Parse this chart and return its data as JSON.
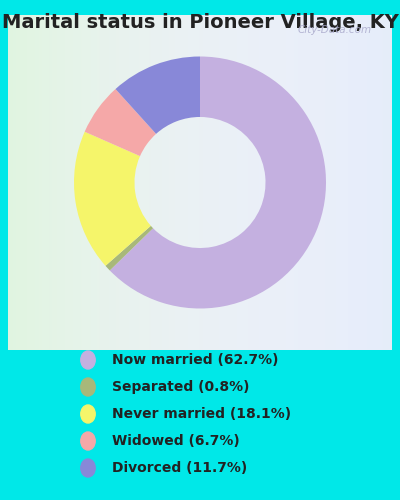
{
  "title": "Marital status in Pioneer Village, KY",
  "slices": [
    {
      "label": "Now married (62.7%)",
      "value": 62.7,
      "color": "#c4b0e0"
    },
    {
      "label": "Separated (0.8%)",
      "value": 0.8,
      "color": "#a8b87a"
    },
    {
      "label": "Never married (18.1%)",
      "value": 18.1,
      "color": "#f5f56a"
    },
    {
      "label": "Widowed (6.7%)",
      "value": 6.7,
      "color": "#f5a8a8"
    },
    {
      "label": "Divorced (11.7%)",
      "value": 11.7,
      "color": "#8888d8"
    }
  ],
  "title_color": "#222222",
  "title_fontsize": 14,
  "outer_bg_color": "#00e8e8",
  "watermark": "City-Data.com",
  "watermark_color": "#aaaacc",
  "donut_width": 0.48,
  "start_angle": 90,
  "legend_fontsize": 10,
  "legend_text_color": "#222222"
}
